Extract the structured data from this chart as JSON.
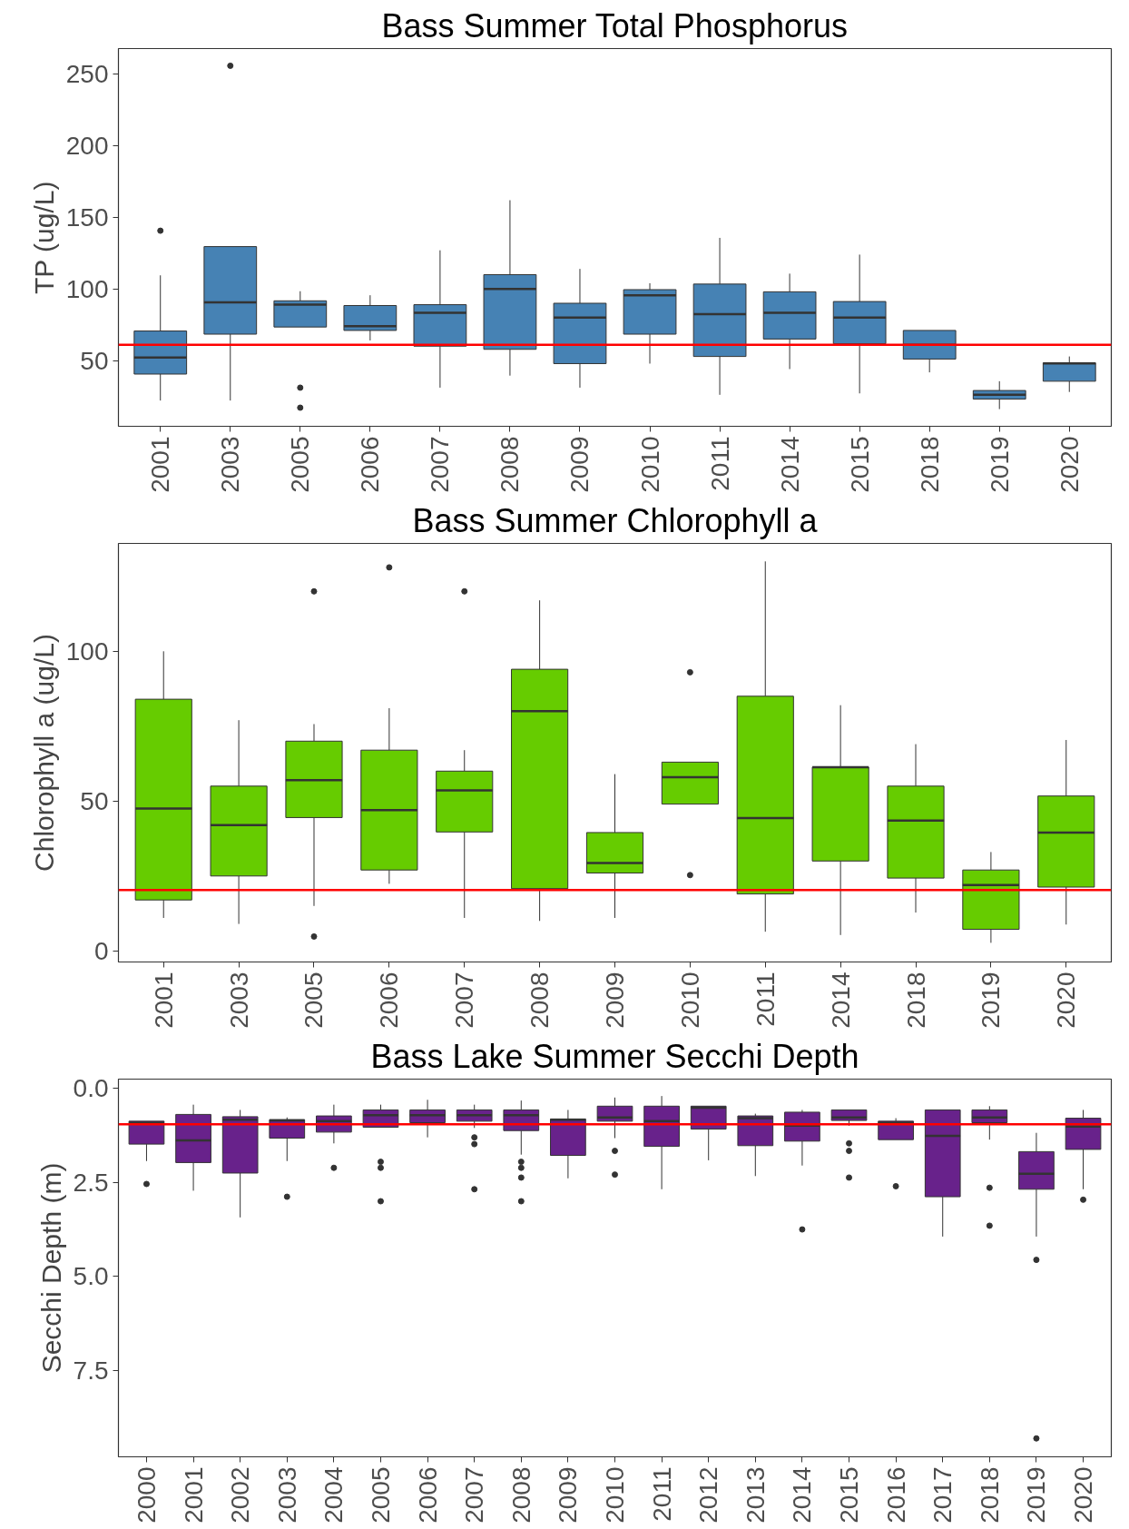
{
  "chart_data": [
    {
      "type": "box",
      "title": "Bass Summer Total Phosphorus",
      "ylabel": "TP (ug/L)",
      "grid": false,
      "color": "#4682b4",
      "categories": [
        "2001",
        "2003",
        "2005",
        "2006",
        "2007",
        "2008",
        "2009",
        "2010",
        "2011",
        "2014",
        "2015",
        "2018",
        "2019",
        "2020"
      ],
      "ylim": [
        4,
        268
      ],
      "yticks": [
        50,
        100,
        150,
        200,
        250
      ],
      "ref_lines": [
        {
          "axis": "y",
          "value": 61,
          "color": "#ff0000"
        }
      ],
      "boxes": [
        {
          "low": 22,
          "q1": 40.5,
          "median": 52,
          "q3": 70.6,
          "high": 109.5,
          "outliers": [
            140.7
          ]
        },
        {
          "low": 22,
          "q1": 68.4,
          "median": 90.6,
          "q3": 129.6,
          "high": 129.6,
          "outliers": [
            256
          ]
        },
        {
          "low": 73.4,
          "q1": 73.4,
          "median": 89,
          "q3": 91.7,
          "high": 98.4,
          "outliers": [
            31,
            17
          ]
        },
        {
          "low": 64,
          "q1": 71,
          "median": 74,
          "q3": 88.4,
          "high": 95.6
        },
        {
          "low": 31,
          "q1": 60,
          "median": 83.4,
          "q3": 89,
          "high": 127
        },
        {
          "low": 39.4,
          "q1": 57.8,
          "median": 100,
          "q3": 110,
          "high": 162
        },
        {
          "low": 31,
          "q1": 47.8,
          "median": 80,
          "q3": 90,
          "high": 114
        },
        {
          "low": 47.8,
          "q1": 68.4,
          "median": 95.6,
          "q3": 99.5,
          "high": 104
        },
        {
          "low": 26,
          "q1": 52.8,
          "median": 82.3,
          "q3": 103.4,
          "high": 135.7
        },
        {
          "low": 44,
          "q1": 65,
          "median": 83.4,
          "q3": 98,
          "high": 110.7
        },
        {
          "low": 27,
          "q1": 61.7,
          "median": 80,
          "q3": 91.2,
          "high": 124
        },
        {
          "low": 41.7,
          "q1": 51,
          "median": 61,
          "q3": 71,
          "high": 71
        },
        {
          "low": 16,
          "q1": 23,
          "median": 26,
          "q3": 29,
          "high": 35.5
        },
        {
          "low": 28,
          "q1": 35.5,
          "median": 48,
          "q3": 48.3,
          "high": 52.8
        }
      ]
    },
    {
      "type": "box",
      "title": "Bass Summer Chlorophyll a",
      "ylabel": "Chlorophyll a (ug/L)",
      "grid": false,
      "color": "#66cc00",
      "categories": [
        "2001",
        "2003",
        "2005",
        "2006",
        "2007",
        "2008",
        "2009",
        "2010",
        "2011",
        "2014",
        "2018",
        "2019",
        "2020"
      ],
      "ylim": [
        -3.7,
        136
      ],
      "yticks": [
        0,
        50,
        100
      ],
      "ref_lines": [
        {
          "axis": "y",
          "value": 20.3,
          "color": "#ff0000"
        }
      ],
      "boxes": [
        {
          "low": 11,
          "q1": 17,
          "median": 47.5,
          "q3": 84,
          "high": 100
        },
        {
          "low": 9,
          "q1": 25,
          "median": 42,
          "q3": 55,
          "high": 77
        },
        {
          "low": 15,
          "q1": 44.5,
          "median": 57,
          "q3": 70,
          "high": 75.7,
          "outliers": [
            120,
            4.8
          ]
        },
        {
          "low": 22.4,
          "q1": 27,
          "median": 47,
          "q3": 67,
          "high": 81,
          "outliers": [
            128
          ]
        },
        {
          "low": 11,
          "q1": 39.7,
          "median": 53.6,
          "q3": 60,
          "high": 67,
          "outliers": [
            120
          ]
        },
        {
          "low": 10,
          "q1": 20.8,
          "median": 80,
          "q3": 94,
          "high": 117
        },
        {
          "low": 11,
          "q1": 26,
          "median": 29.3,
          "q3": 39.5,
          "high": 59
        },
        {
          "low": 49,
          "q1": 49,
          "median": 58,
          "q3": 63,
          "high": 63,
          "outliers": [
            93,
            25.3
          ]
        },
        {
          "low": 6.4,
          "q1": 19,
          "median": 44.3,
          "q3": 85,
          "high": 130
        },
        {
          "low": 5.3,
          "q1": 30,
          "median": 61.3,
          "q3": 61.3,
          "high": 82
        },
        {
          "low": 12.8,
          "q1": 24.3,
          "median": 43.5,
          "q3": 55,
          "high": 69
        },
        {
          "low": 2.7,
          "q1": 7.2,
          "median": 22,
          "q3": 27,
          "high": 33
        },
        {
          "low": 8.8,
          "q1": 21.3,
          "median": 39.5,
          "q3": 51.7,
          "high": 70.4
        }
      ]
    },
    {
      "type": "box",
      "title": "Bass Lake Summer Secchi Depth",
      "ylabel": "Secchi Depth (m)",
      "grid": false,
      "color": "#68228b",
      "categories": [
        "2000",
        "2001",
        "2002",
        "2003",
        "2004",
        "2005",
        "2006",
        "2007",
        "2008",
        "2009",
        "2010",
        "2011",
        "2012",
        "2013",
        "2014",
        "2015",
        "2016",
        "2017",
        "2018",
        "2019",
        "2020"
      ],
      "ylim": [
        9.8,
        -0.25
      ],
      "yticks": [
        {
          "value": 0,
          "label": "0.0"
        },
        2.5,
        {
          "value": 5,
          "label": "5.0"
        },
        7.5
      ],
      "ref_lines": [
        {
          "axis": "y",
          "value": 0.95,
          "color": "#ff0000"
        }
      ],
      "boxes": [
        {
          "low": 0.87,
          "q1": 0.87,
          "median": 0.91,
          "q3": 1.48,
          "high": 1.93,
          "outliers": [
            2.54
          ]
        },
        {
          "low": 0.43,
          "q1": 0.69,
          "median": 1.38,
          "q3": 1.97,
          "high": 2.72
        },
        {
          "low": 0.57,
          "q1": 0.75,
          "median": 0.83,
          "q3": 2.25,
          "high": 3.43
        },
        {
          "low": 0.77,
          "q1": 0.83,
          "median": 0.85,
          "q3": 1.32,
          "high": 1.93,
          "outliers": [
            2.88
          ]
        },
        {
          "low": 0.43,
          "q1": 0.73,
          "median": 0.87,
          "q3": 1.16,
          "high": 1.46,
          "outliers": [
            2.11
          ]
        },
        {
          "low": 0.43,
          "q1": 0.57,
          "median": 0.71,
          "q3": 1.03,
          "high": 1.03,
          "outliers": [
            1.95,
            2.11,
            3.0
          ]
        },
        {
          "low": 0.3,
          "q1": 0.57,
          "median": 0.71,
          "q3": 0.91,
          "high": 1.3
        },
        {
          "low": 0.43,
          "q1": 0.57,
          "median": 0.71,
          "q3": 0.87,
          "high": 1.05,
          "outliers": [
            1.3,
            1.48,
            2.68
          ]
        },
        {
          "low": 0.32,
          "q1": 0.57,
          "median": 0.71,
          "q3": 1.12,
          "high": 1.76,
          "outliers": [
            1.95,
            2.11,
            2.37,
            3.0
          ]
        },
        {
          "low": 0.57,
          "q1": 0.81,
          "median": 0.83,
          "q3": 1.78,
          "high": 2.39
        },
        {
          "low": 0.24,
          "q1": 0.47,
          "median": 0.77,
          "q3": 0.87,
          "high": 1.32,
          "outliers": [
            1.66,
            2.29
          ]
        },
        {
          "low": 0.2,
          "q1": 0.47,
          "median": 0.87,
          "q3": 1.54,
          "high": 2.68
        },
        {
          "low": 0.47,
          "q1": 0.47,
          "median": 0.51,
          "q3": 1.08,
          "high": 1.91
        },
        {
          "low": 0.67,
          "q1": 0.73,
          "median": 0.79,
          "q3": 1.52,
          "high": 2.33
        },
        {
          "low": 0.57,
          "q1": 0.63,
          "median": 0.99,
          "q3": 1.4,
          "high": 2.05,
          "outliers": [
            3.75
          ]
        },
        {
          "low": 0.57,
          "q1": 0.57,
          "median": 0.77,
          "q3": 0.85,
          "high": 0.99,
          "outliers": [
            1.46,
            1.66,
            2.37
          ]
        },
        {
          "low": 0.79,
          "q1": 0.87,
          "median": 0.91,
          "q3": 1.36,
          "high": 1.36,
          "outliers": [
            2.6
          ]
        },
        {
          "low": 0.57,
          "q1": 0.57,
          "median": 1.26,
          "q3": 2.88,
          "high": 3.94
        },
        {
          "low": 0.47,
          "q1": 0.57,
          "median": 0.77,
          "q3": 0.91,
          "high": 1.36,
          "outliers": [
            2.64,
            3.65
          ]
        },
        {
          "low": 1.18,
          "q1": 1.68,
          "median": 2.27,
          "q3": 2.68,
          "high": 3.94,
          "outliers": [
            4.56,
            9.31
          ]
        },
        {
          "low": 0.57,
          "q1": 0.79,
          "median": 1.01,
          "q3": 1.62,
          "high": 2.68,
          "outliers": [
            2.96
          ]
        }
      ]
    }
  ]
}
